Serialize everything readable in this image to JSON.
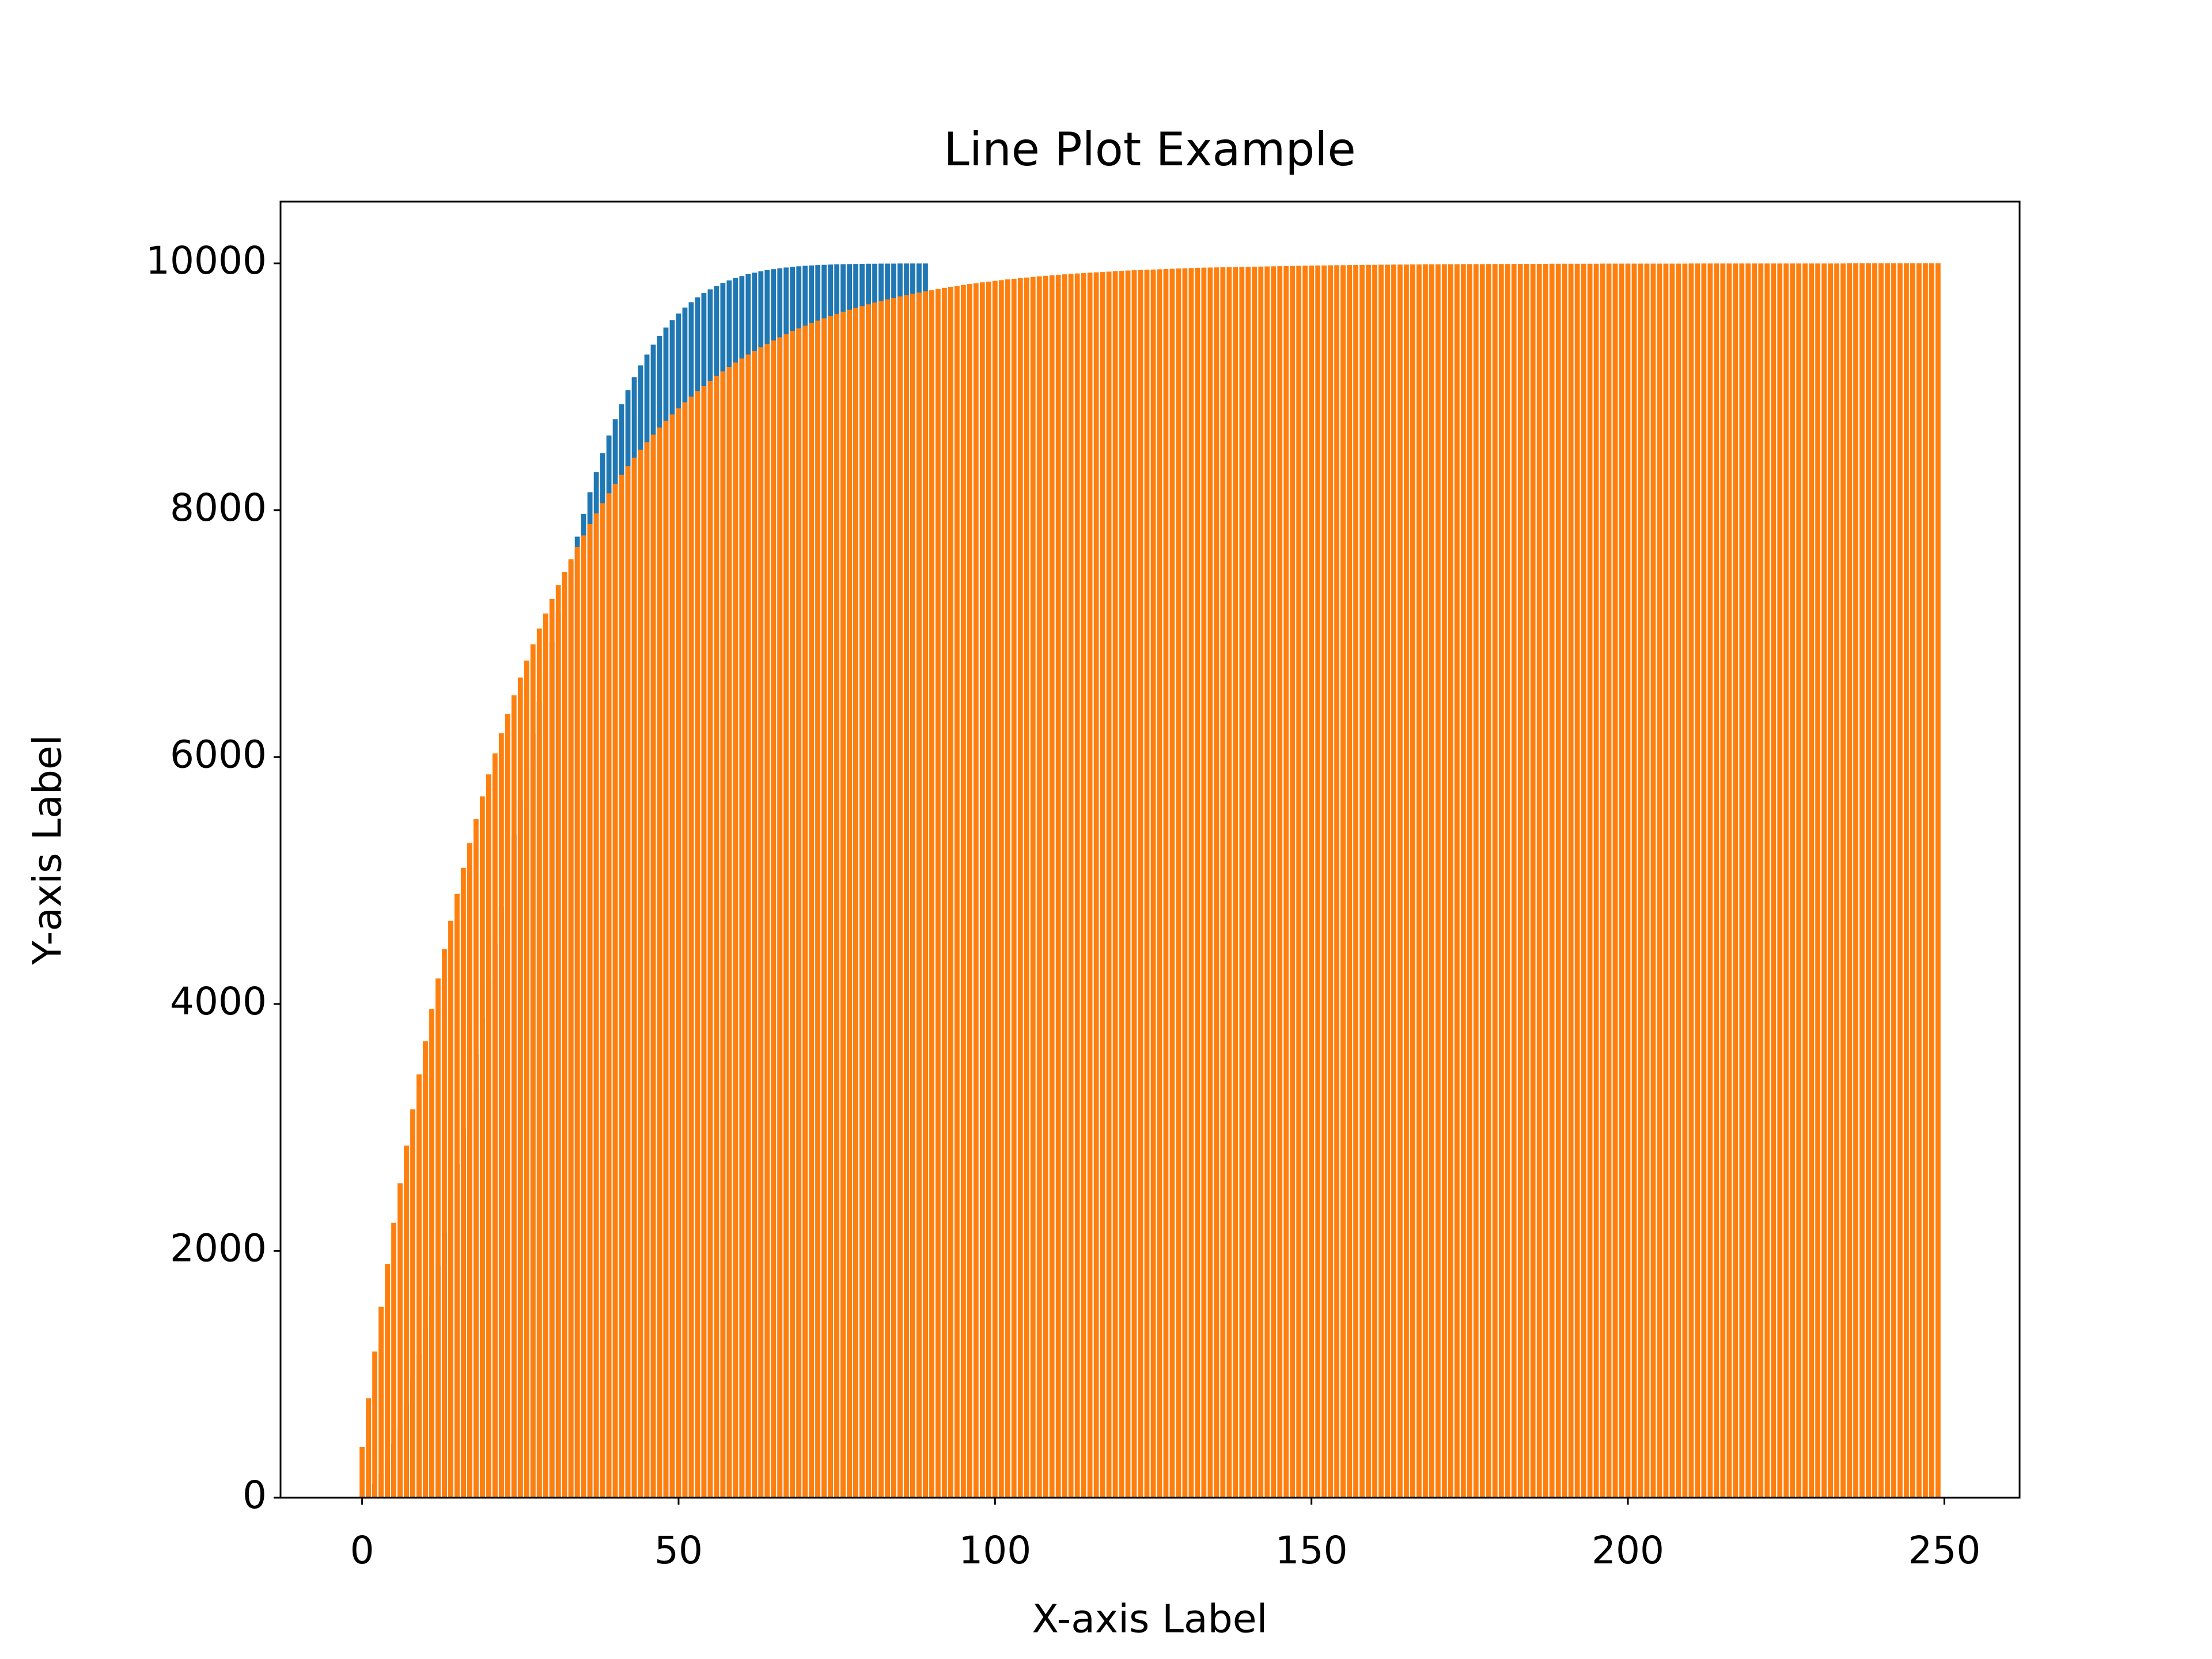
{
  "chart_data": {
    "type": "bar",
    "title": "Line Plot Example",
    "x_label": "X-axis Label",
    "y_label": "Y-axis Label",
    "xlim": [
      -12.89,
      261.89
    ],
    "ylim": [
      0,
      10500
    ],
    "xticks": [
      0,
      50,
      100,
      150,
      200,
      250
    ],
    "yticks": [
      0,
      2000,
      4000,
      6000,
      8000,
      10000
    ],
    "grid": false,
    "series": [
      {
        "color": "#1f77b4",
        "x": [
          0,
          1,
          2,
          3,
          4,
          5,
          6,
          7,
          8,
          9,
          10,
          11,
          12,
          13,
          14,
          15,
          16,
          17,
          18,
          19,
          20,
          21,
          22,
          23,
          24,
          25,
          26,
          27,
          28,
          29,
          30,
          31,
          32,
          33,
          34,
          35,
          36,
          37,
          38,
          39,
          40,
          41,
          42,
          43,
          44,
          45,
          46,
          47,
          48,
          49,
          50,
          51,
          52,
          53,
          54,
          55,
          56,
          57,
          58,
          59,
          60,
          61,
          62,
          63,
          64,
          65,
          66,
          67,
          68,
          69,
          70,
          71,
          72,
          73,
          74,
          75,
          76,
          77,
          78,
          79,
          80,
          81,
          82,
          83,
          84,
          85,
          86,
          87,
          88,
          89
        ],
        "values": [
          12,
          49,
          110,
          195,
          303,
          433,
          585,
          758,
          949,
          1158,
          1384,
          1625,
          1879,
          2144,
          2419,
          2702,
          2994,
          3289,
          3588,
          3888,
          4189,
          4489,
          4786,
          5079,
          5367,
          5649,
          5924,
          6190,
          6449,
          6697,
          6936,
          7165,
          7383,
          7590,
          7786,
          7971,
          8146,
          8310,
          8463,
          8605,
          8737,
          8860,
          8973,
          9077,
          9173,
          9261,
          9341,
          9413,
          9480,
          9539,
          9593,
          9642,
          9685,
          9724,
          9759,
          9789,
          9817,
          9841,
          9862,
          9881,
          9897,
          9912,
          9924,
          9935,
          9945,
          9953,
          9960,
          9966,
          9972,
          9976,
          9980,
          9983,
          9986,
          9988,
          9990,
          9992,
          9993,
          9994,
          9995,
          9996,
          9997,
          9997,
          9998,
          9998,
          9998,
          9999,
          9999,
          9999,
          9999,
          9999
        ]
      },
      {
        "color": "#ff7f0e",
        "x": [
          0,
          1,
          2,
          3,
          4,
          5,
          6,
          7,
          8,
          9,
          10,
          11,
          12,
          13,
          14,
          15,
          16,
          17,
          18,
          19,
          20,
          21,
          22,
          23,
          24,
          25,
          26,
          27,
          28,
          29,
          30,
          31,
          32,
          33,
          34,
          35,
          36,
          37,
          38,
          39,
          40,
          41,
          42,
          43,
          44,
          45,
          46,
          47,
          48,
          49,
          50,
          51,
          52,
          53,
          54,
          55,
          56,
          57,
          58,
          59,
          60,
          61,
          62,
          63,
          64,
          65,
          66,
          67,
          68,
          69,
          70,
          71,
          72,
          73,
          74,
          75,
          76,
          77,
          78,
          79,
          80,
          81,
          82,
          83,
          84,
          85,
          86,
          87,
          88,
          89,
          90,
          91,
          92,
          93,
          94,
          95,
          96,
          97,
          98,
          99,
          100,
          101,
          102,
          103,
          104,
          105,
          106,
          107,
          108,
          109,
          110,
          111,
          112,
          113,
          114,
          115,
          116,
          117,
          118,
          119,
          120,
          121,
          122,
          123,
          124,
          125,
          126,
          127,
          128,
          129,
          130,
          131,
          132,
          133,
          134,
          135,
          136,
          137,
          138,
          139,
          140,
          141,
          142,
          143,
          144,
          145,
          146,
          147,
          148,
          149,
          150,
          151,
          152,
          153,
          154,
          155,
          156,
          157,
          158,
          159,
          160,
          161,
          162,
          163,
          164,
          165,
          166,
          167,
          168,
          169,
          170,
          171,
          172,
          173,
          174,
          175,
          176,
          177,
          178,
          179,
          180,
          181,
          182,
          183,
          184,
          185,
          186,
          187,
          188,
          189,
          190,
          191,
          192,
          193,
          194,
          195,
          196,
          197,
          198,
          199,
          200,
          201,
          202,
          203,
          204,
          205,
          206,
          207,
          208,
          209,
          210,
          211,
          212,
          213,
          214,
          215,
          216,
          217,
          218,
          219,
          220,
          221,
          222,
          223,
          224,
          225,
          226,
          227,
          228,
          229,
          230,
          231,
          232,
          233,
          234,
          235,
          236,
          237,
          238,
          239,
          240,
          241,
          242,
          243,
          244,
          245,
          246,
          247,
          248,
          249
        ],
        "values": [
          411,
          806,
          1184,
          1546,
          1894,
          2227,
          2547,
          2853,
          3147,
          3429,
          3699,
          3958,
          4207,
          4445,
          4673,
          4892,
          5102,
          5304,
          5497,
          5682,
          5860,
          6030,
          6193,
          6350,
          6500,
          6644,
          6782,
          6914,
          7041,
          7163,
          7280,
          7392,
          7499,
          7602,
          7701,
          7796,
          7887,
          7974,
          8057,
          8137,
          8214,
          8287,
          8357,
          8425,
          8490,
          8552,
          8612,
          8669,
          8724,
          8776,
          8826,
          8874,
          8920,
          8964,
          9007,
          9048,
          9087,
          9125,
          9161,
          9196,
          9229,
          9261,
          9291,
          9320,
          9348,
          9375,
          9401,
          9426,
          9450,
          9473,
          9495,
          9516,
          9536,
          9555,
          9573,
          9591,
          9608,
          9624,
          9639,
          9654,
          9668,
          9682,
          9695,
          9708,
          9720,
          9732,
          9743,
          9754,
          9764,
          9774,
          9783,
          9792,
          9801,
          9809,
          9817,
          9825,
          9832,
          9839,
          9846,
          9852,
          9858,
          9864,
          9870,
          9875,
          9880,
          9885,
          9890,
          9895,
          9899,
          9903,
          9907,
          9911,
          9915,
          9918,
          9921,
          9924,
          9927,
          9930,
          9933,
          9936,
          9939,
          9942,
          9944,
          9946,
          9948,
          9950,
          9952,
          9954,
          9956,
          9958,
          9960,
          9962,
          9964,
          9965,
          9966,
          9967,
          9968,
          9969,
          9970,
          9971,
          9972,
          9973,
          9974,
          9975,
          9976,
          9977,
          9978,
          9979,
          9980,
          9981,
          9982,
          9983,
          9983,
          9984,
          9985,
          9985,
          9986,
          9987,
          9987,
          9988,
          9988,
          9989,
          9989,
          9990,
          9990,
          9990,
          9991,
          9991,
          9992,
          9992,
          9992,
          9993,
          9993,
          9993,
          9994,
          9994,
          9994,
          9994,
          9995,
          9995,
          9995,
          9995,
          9996,
          9996,
          9996,
          9996,
          9996,
          9996,
          9997,
          9997,
          9997,
          9997,
          9997,
          9997,
          9997,
          9997,
          9998,
          9998,
          9998,
          9998,
          9998,
          9998,
          9998,
          9998,
          9998,
          9998,
          9998,
          9998,
          9998,
          9998,
          9999,
          9999,
          9999,
          9999,
          9999,
          9999,
          9999,
          9999,
          9999,
          9999,
          9999,
          9999,
          9999,
          9999,
          9999,
          9999,
          9999,
          9999,
          9999,
          9999,
          9999,
          9999,
          9999,
          9999,
          9999,
          10000,
          10000,
          10000,
          10000,
          10000,
          10000,
          10000,
          10000,
          10000,
          10000,
          10000,
          10000,
          10000,
          10000,
          10000
        ]
      }
    ]
  }
}
